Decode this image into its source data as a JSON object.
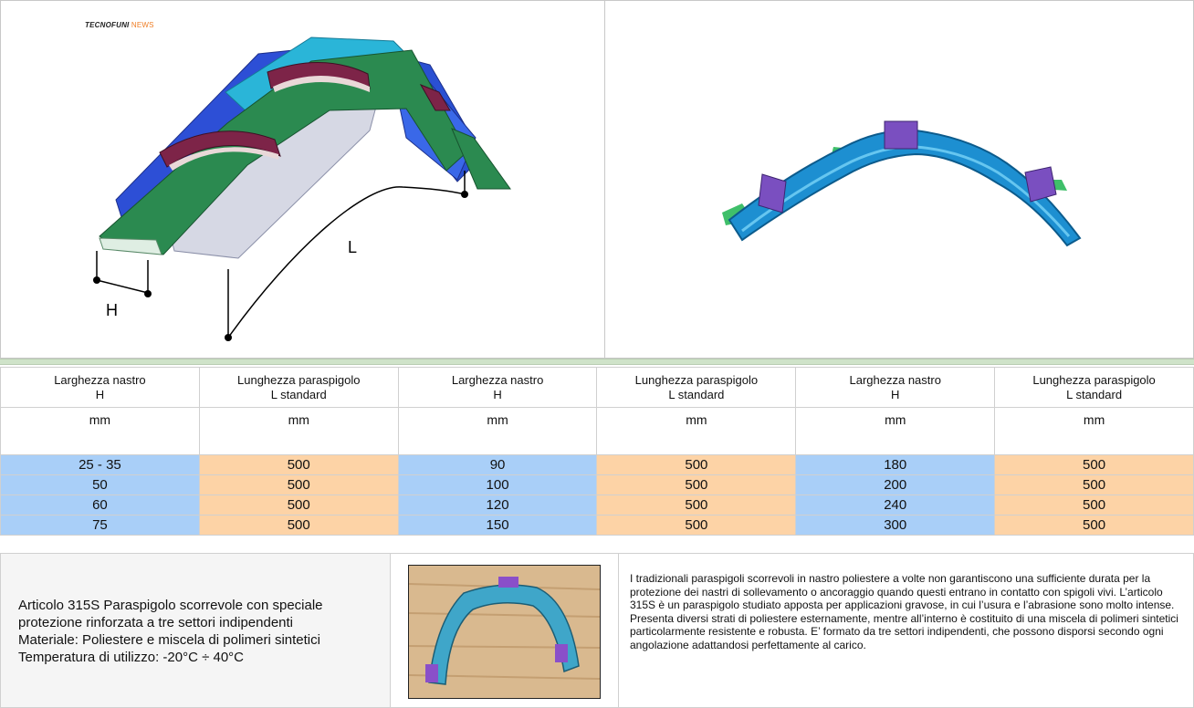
{
  "brand": {
    "part1": "TECNOFUNI",
    "part2": "NEWS"
  },
  "diagram": {
    "label_h": "H",
    "label_l": "L"
  },
  "table": {
    "header_row1": [
      [
        "Larghezza nastro",
        "H"
      ],
      [
        "Lunghezza paraspigolo",
        "L standard"
      ],
      [
        "Larghezza nastro",
        "H"
      ],
      [
        "Lunghezza paraspigolo",
        "L standard"
      ],
      [
        "Larghezza nastro",
        "H"
      ],
      [
        "Lunghezza paraspigolo",
        "L standard"
      ]
    ],
    "units": [
      "mm",
      "mm",
      "mm",
      "mm",
      "mm",
      "mm"
    ],
    "rows": [
      [
        "25 - 35",
        "500",
        "90",
        "500",
        "180",
        "500"
      ],
      [
        "50",
        "500",
        "100",
        "500",
        "200",
        "500"
      ],
      [
        "60",
        "500",
        "120",
        "500",
        "240",
        "500"
      ],
      [
        "75",
        "500",
        "150",
        "500",
        "300",
        "500"
      ]
    ]
  },
  "article": {
    "lines": [
      "Articolo 315S Paraspigolo scorrevole con speciale",
      "protezione rinforzata a tre settori indipendenti",
      "Materiale: Poliestere e miscela di polimeri sintetici",
      "Temperatura di utilizzo: -20°C ÷ 40°C"
    ]
  },
  "description": "I tradizionali paraspigoli scorrevoli in nastro poliestere a volte non garantiscono una sufficiente durata per la protezione dei nastri di sollevamento o ancoraggio quando questi entrano in contatto con spigoli vivi. L’articolo 315S è un paraspigolo studiato apposta per applicazioni gravose, in cui l’usura e l’abrasione sono molto intense. Presenta diversi strati di poliestere esternamente, mentre all’interno è costituito di una miscela di polimeri sintetici particolarmente resistente e robusta. E’ formato da tre settori indipendenti, che possono disporsi secondo ogni angolazione adattandosi perfettamente al carico.",
  "colors": {
    "blue_cell": "#a9cff8",
    "orange_cell": "#fdd3a6"
  }
}
